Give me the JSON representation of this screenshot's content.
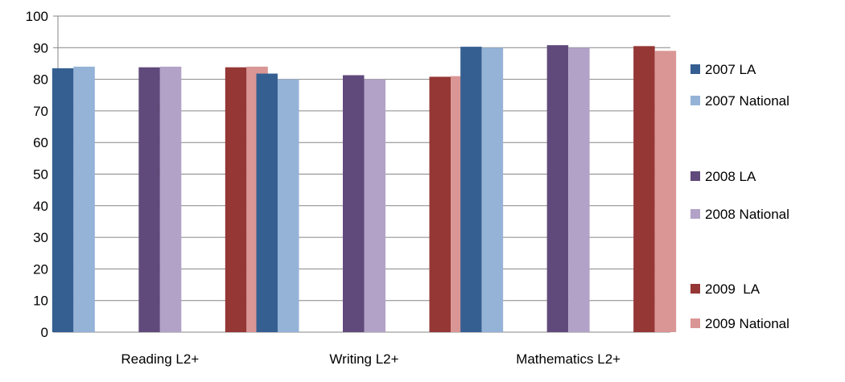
{
  "chart_data": {
    "type": "bar",
    "categories": [
      "Reading L2+",
      "Writing L2+",
      "Mathematics L2+"
    ],
    "ylim": [
      0,
      100
    ],
    "yticks": [
      0,
      10,
      20,
      30,
      40,
      50,
      60,
      70,
      80,
      90,
      100
    ],
    "grid": true,
    "legend_position": "right",
    "series": [
      {
        "name": "2007 LA",
        "color": "#365F91",
        "values": [
          83.5,
          81.8,
          90.3
        ]
      },
      {
        "name": "2007 National",
        "color": "#95B3D7",
        "values": [
          84,
          80,
          90
        ]
      },
      {
        "name": "2008 LA",
        "color": "#604A7B",
        "values": [
          83.8,
          81.3,
          90.8
        ]
      },
      {
        "name": "2008 National",
        "color": "#B2A2C7",
        "values": [
          84,
          80,
          90
        ]
      },
      {
        "name": "2009  LA",
        "color": "#953735",
        "values": [
          83.8,
          80.8,
          90.5
        ]
      },
      {
        "name": "2009 National",
        "color": "#D99694",
        "values": [
          84,
          81,
          89
        ]
      }
    ]
  }
}
